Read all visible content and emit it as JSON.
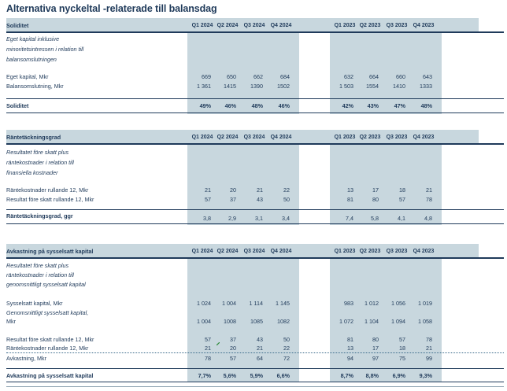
{
  "title": "Alternativa nyckeltal -relaterade till balansdag",
  "cols_2024": [
    "Q1 2024",
    "Q2 2024",
    "Q3 2024",
    "Q4 2024"
  ],
  "cols_2023": [
    "Q1 2023",
    "Q2 2023",
    "Q3 2023",
    "Q4 2023"
  ],
  "s1": {
    "header": "Soliditet",
    "desc": [
      "Eget kapital inklusive",
      "minoritetsintressen i relation till",
      "balansomslutningen"
    ],
    "rows": [
      {
        "label": "Eget kapital, Mkr",
        "v2024": [
          "669",
          "650",
          "662",
          "684"
        ],
        "v2023": [
          "632",
          "664",
          "660",
          "643"
        ]
      },
      {
        "label": "Balansomslutning, Mkr",
        "v2024": [
          "1 361",
          "1415",
          "1390",
          "1502"
        ],
        "v2023": [
          "1 503",
          "1554",
          "1410",
          "1333"
        ]
      }
    ],
    "total": {
      "label": "Soliditet",
      "v2024": [
        "49%",
        "46%",
        "48%",
        "46%"
      ],
      "v2023": [
        "42%",
        "43%",
        "47%",
        "48%"
      ]
    }
  },
  "s2": {
    "header": "Räntetäckningsgrad",
    "desc": [
      "Resultatet före skatt plus",
      "räntekostnader i relation till",
      "finansiella kostnader"
    ],
    "rows": [
      {
        "label": "Räntekostnader rullande 12, Mkr",
        "v2024": [
          "21",
          "20",
          "21",
          "22"
        ],
        "v2023": [
          "13",
          "17",
          "18",
          "21"
        ]
      },
      {
        "label": "Resultat före skatt rullande 12, Mkr",
        "v2024": [
          "57",
          "37",
          "43",
          "50"
        ],
        "v2023": [
          "81",
          "80",
          "57",
          "78"
        ]
      }
    ],
    "total": {
      "label": "Räntetäckningsgrad, ggr",
      "v2024": [
        "3,8",
        "2,9",
        "3,1",
        "3,4"
      ],
      "v2023": [
        "7,4",
        "5,8",
        "4,1",
        "4,8"
      ]
    }
  },
  "s3": {
    "header": "Avkastning på sysselsatt kapital",
    "desc": [
      "Resultatet före skatt plus",
      "räntekostnader i relation till",
      "genomsnittligt sysselsatt kapital"
    ],
    "row1": {
      "label": "Sysselsatt kapital, Mkr",
      "v2024": [
        "1 024",
        "1 004",
        "1 114",
        "1 145"
      ],
      "v2023": [
        "983",
        "1 012",
        "1 056",
        "1 019"
      ]
    },
    "row2_label": [
      "Genomsnittligt sysselsatt kapital,",
      "Mkr"
    ],
    "row2": {
      "v2024": [
        "1 004",
        "1008",
        "1085",
        "1082"
      ],
      "v2023": [
        "1 072",
        "1 104",
        "1 094",
        "1 058"
      ]
    },
    "row3": {
      "label": "Resultat före skatt rullande 12, Mkr",
      "v2024": [
        "57",
        "37",
        "43",
        "50"
      ],
      "v2023": [
        "81",
        "80",
        "57",
        "78"
      ]
    },
    "row4": {
      "label": "Räntekostnader rullande 12, Mkr",
      "v2024": [
        "21",
        "20",
        "21",
        "22"
      ],
      "v2023": [
        "13",
        "17",
        "18",
        "21"
      ]
    },
    "row5": {
      "label": "Avkastning, Mkr",
      "v2024": [
        "78",
        "57",
        "64",
        "72"
      ],
      "v2023": [
        "94",
        "97",
        "75",
        "99"
      ]
    },
    "total": {
      "label": "Avkastning på sysselsatt kapital",
      "v2024": [
        "7,7%",
        "5,6%",
        "5,9%",
        "6,6%"
      ],
      "v2023": [
        "8,7%",
        "8,8%",
        "6,9%",
        "9,3%"
      ]
    }
  },
  "colors": {
    "navy": "#1f3a5a",
    "shade": "#c8d7de"
  }
}
